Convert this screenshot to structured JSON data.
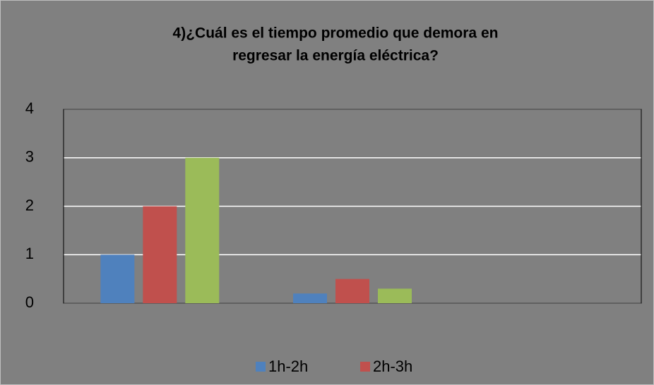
{
  "chart_data": {
    "type": "bar",
    "title": [
      "4)¿Cuál es el tiempo promedio que demora en",
      "regresar la energía eléctrica?"
    ],
    "categories": [
      null,
      null,
      null
    ],
    "series": [
      {
        "name": "1h-2h",
        "color": "#4f81bd",
        "values": [
          1,
          0.2,
          null
        ]
      },
      {
        "name": "2h-3h",
        "color": "#c0504d",
        "values": [
          2,
          0.5,
          null
        ]
      },
      {
        "color": "#9bbb59",
        "values": [
          3,
          0.3,
          null
        ]
      }
    ],
    "ylim": [
      0,
      4
    ],
    "yticks": [
      0,
      1,
      2,
      3,
      4
    ],
    "grid": true,
    "legend": "bottom"
  }
}
